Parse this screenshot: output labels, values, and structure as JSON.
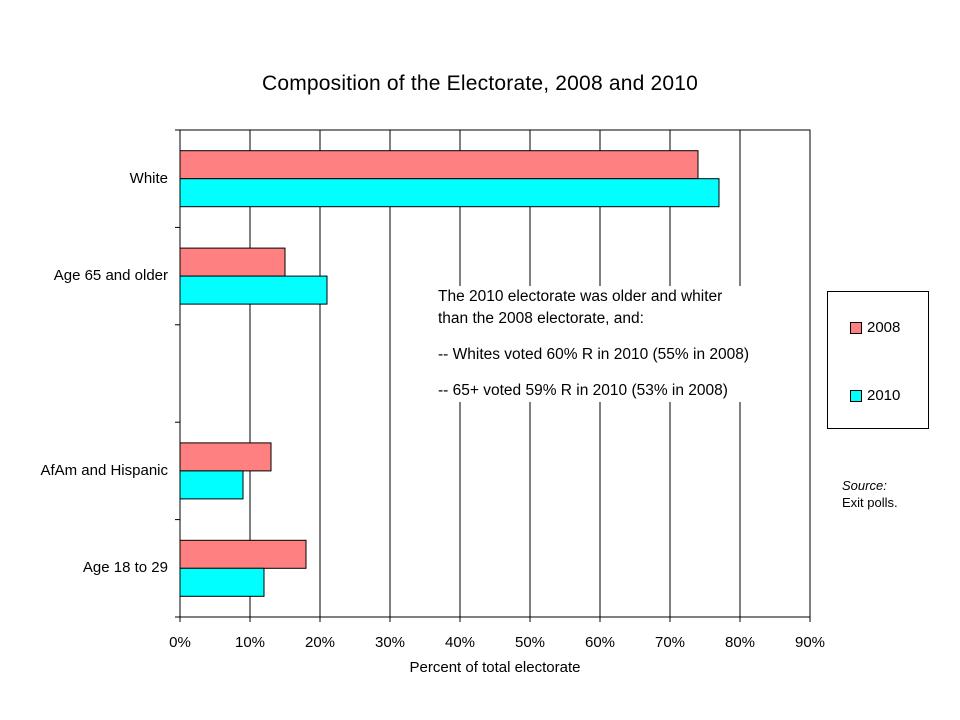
{
  "chart_data": {
    "type": "bar",
    "orientation": "horizontal",
    "title": "Composition of the Electorate, 2008 and 2010",
    "xlabel": "Percent of total electorate",
    "ylabel": "",
    "xlim": [
      0,
      0.9
    ],
    "xticks": [
      "0%",
      "10%",
      "20%",
      "30%",
      "40%",
      "50%",
      "60%",
      "70%",
      "80%",
      "90%"
    ],
    "grid": "vertical",
    "legend_position": "right",
    "categories": [
      "White",
      "Age 65 and older",
      "",
      "AfAm and Hispanic",
      "Age 18 to 29"
    ],
    "series": [
      {
        "name": "2008",
        "color": "#FF8080",
        "values": [
          0.74,
          0.15,
          null,
          0.13,
          0.18
        ]
      },
      {
        "name": "2010",
        "color": "#00FFFF",
        "values": [
          0.77,
          0.21,
          null,
          0.09,
          0.12
        ]
      }
    ],
    "annotation": [
      "The 2010 electorate was older and whiter",
      "than the 2008 electorate, and:",
      "",
      "-- Whites voted 60% R in 2010 (55% in 2008)",
      "",
      "-- 65+ voted 59% R in 2010 (53% in 2008)"
    ],
    "source_label": "Source:",
    "source_text": "Exit polls."
  }
}
